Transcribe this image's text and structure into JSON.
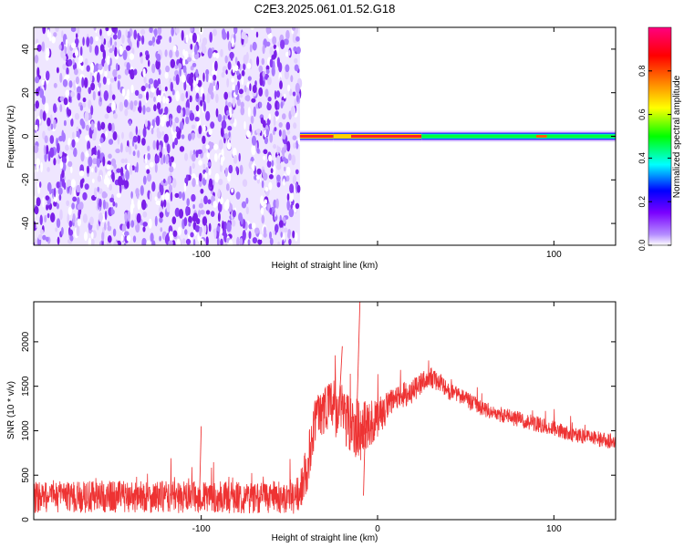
{
  "title": "C2E3.2025.061.01.52.G18",
  "colors": {
    "snr_line": "#ee3333",
    "noise_dots": "#8a2be2",
    "colorbar": [
      "#ffffff",
      "#8b00ff",
      "#0000ff",
      "#00ffff",
      "#00ff00",
      "#ffff00",
      "#ff8000",
      "#ff0000",
      "#ff0080"
    ]
  },
  "chart_data": [
    {
      "type": "heatmap",
      "name": "spectrogram",
      "xlabel": "Height of straight line (km)",
      "ylabel": "Frequency (Hz)",
      "xlim": [
        -195,
        135
      ],
      "ylim": [
        -50,
        50
      ],
      "xticks": [
        -100,
        0,
        100
      ],
      "xtick_labels": [
        "-100",
        "",
        "100"
      ],
      "yticks": [
        -40,
        -20,
        0,
        20,
        40
      ],
      "ytick_labels": [
        "-40",
        "-20",
        "0",
        "20",
        "40"
      ],
      "noise_region_x": [
        -195,
        -44
      ],
      "signal_band": {
        "x": [
          -44,
          135
        ],
        "center_freq": 0,
        "segments": [
          {
            "x": [
              -44,
              -25
            ],
            "amplitude": 0.95
          },
          {
            "x": [
              -25,
              -15
            ],
            "amplitude": 0.6
          },
          {
            "x": [
              -15,
              25
            ],
            "amplitude": 0.9
          },
          {
            "x": [
              25,
              135
            ],
            "amplitude": 0.45
          }
        ]
      },
      "colorbar": {
        "label": "Normalized spectral amplitude",
        "range": [
          0,
          1
        ],
        "ticks": [
          0.0,
          0.2,
          0.4,
          0.6,
          0.8
        ],
        "tick_labels": [
          "0.0",
          "0.2",
          "0.4",
          "0.6",
          "0.8"
        ]
      }
    },
    {
      "type": "line",
      "name": "snr",
      "xlabel": "Height of straight line (km)",
      "ylabel": "SNR (10 * v/v)",
      "xlim": [
        -195,
        135
      ],
      "ylim": [
        0,
        2450
      ],
      "xticks": [
        -100,
        0,
        100
      ],
      "xtick_labels": [
        "-100",
        "0",
        "100"
      ],
      "yticks": [
        0,
        500,
        1000,
        1500,
        2000
      ],
      "ytick_labels": [
        "0",
        "500",
        "1000",
        "1500",
        "2000"
      ],
      "envelope": {
        "x": [
          -195,
          -150,
          -100,
          -60,
          -45,
          -40,
          -35,
          -28,
          -20,
          -10,
          0,
          10,
          20,
          30,
          35,
          40,
          50,
          60,
          70,
          80,
          90,
          100,
          110,
          120,
          135
        ],
        "center": [
          250,
          260,
          250,
          250,
          240,
          600,
          1150,
          1300,
          1200,
          1000,
          1150,
          1350,
          1450,
          1600,
          1550,
          1450,
          1350,
          1250,
          1180,
          1130,
          1080,
          1020,
          960,
          920,
          880
        ],
        "spread": [
          180,
          180,
          180,
          180,
          180,
          300,
          250,
          300,
          350,
          350,
          220,
          150,
          140,
          120,
          110,
          100,
          100,
          90,
          90,
          90,
          90,
          90,
          90,
          90,
          90
        ]
      }
    }
  ]
}
